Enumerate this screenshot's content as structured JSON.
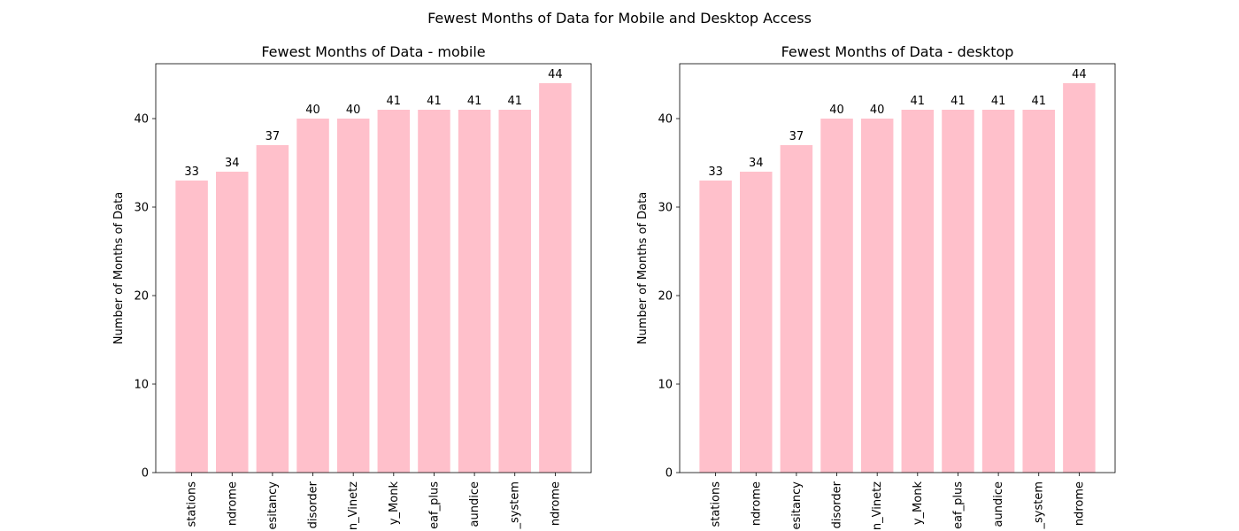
{
  "figure": {
    "title": "Fewest Months of Data for Mobile and Desktop Access",
    "bar_color": "#ffc0cb"
  },
  "chart_data": [
    {
      "type": "bar",
      "title": "Fewest Months of Data - mobile",
      "xlabel": "",
      "ylabel": "Number of Months of Data",
      "ylim": [
        0,
        46.2
      ],
      "yticks": [
        0,
        10,
        20,
        30,
        40
      ],
      "categories": [
        "stations",
        "ndrome",
        "esitancy",
        "disorder",
        "n_Vinetz",
        "y_Monk",
        "eaf_plus",
        "aundice",
        "_system",
        "ndrome"
      ],
      "values": [
        33,
        34,
        37,
        40,
        40,
        41,
        41,
        41,
        41,
        44
      ],
      "grid": false
    },
    {
      "type": "bar",
      "title": "Fewest Months of Data - desktop",
      "xlabel": "",
      "ylabel": "Number of Months of Data",
      "ylim": [
        0,
        46.2
      ],
      "yticks": [
        0,
        10,
        20,
        30,
        40
      ],
      "categories": [
        "stations",
        "ndrome",
        "esitancy",
        "disorder",
        "n_Vinetz",
        "y_Monk",
        "eaf_plus",
        "aundice",
        "_system",
        "ndrome"
      ],
      "values": [
        33,
        34,
        37,
        40,
        40,
        41,
        41,
        41,
        41,
        44
      ],
      "grid": false
    }
  ]
}
